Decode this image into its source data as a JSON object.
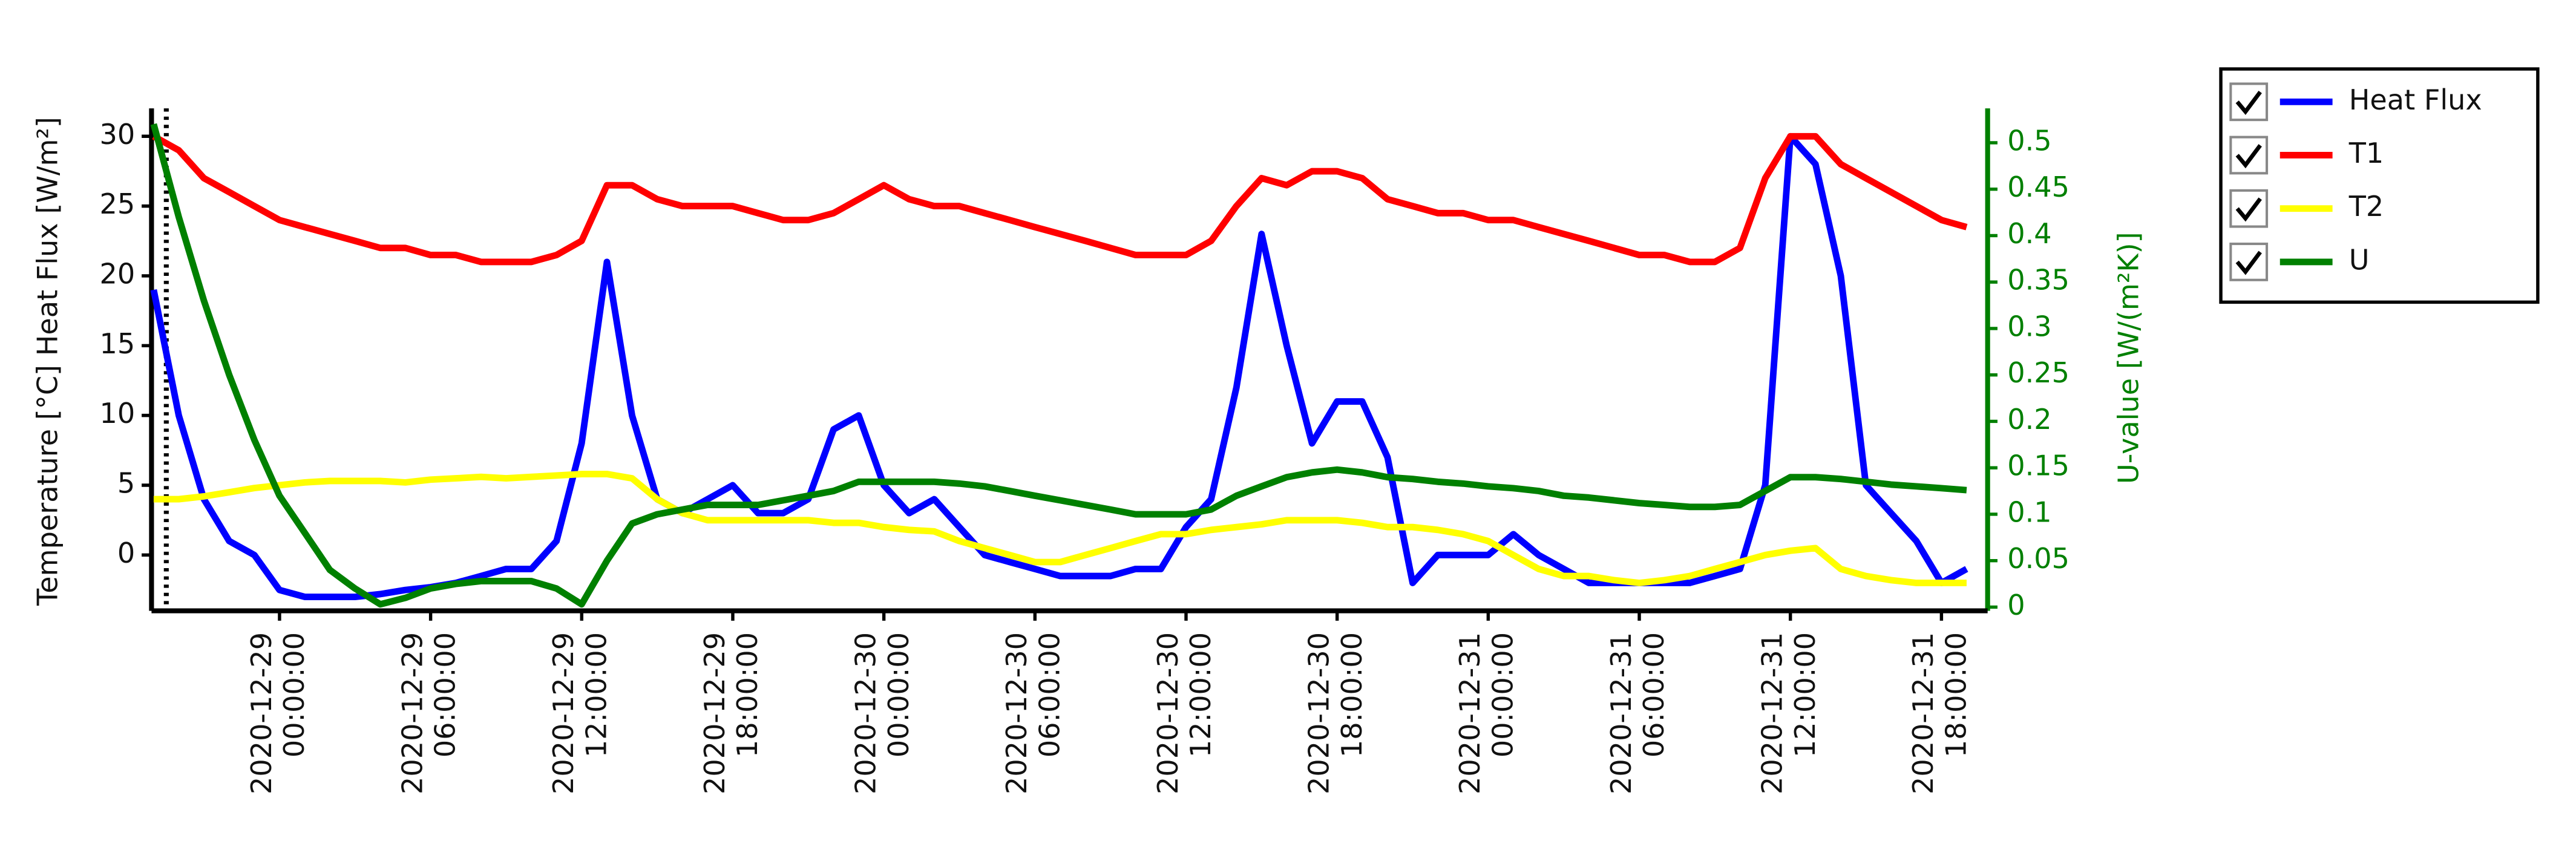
{
  "chart_data": {
    "type": "line",
    "x": [
      "2020-12-28 19:00:00",
      "2020-12-28 20:00:00",
      "2020-12-28 21:00:00",
      "2020-12-28 22:00:00",
      "2020-12-28 23:00:00",
      "2020-12-29 00:00:00",
      "2020-12-29 01:00:00",
      "2020-12-29 02:00:00",
      "2020-12-29 03:00:00",
      "2020-12-29 04:00:00",
      "2020-12-29 05:00:00",
      "2020-12-29 06:00:00",
      "2020-12-29 07:00:00",
      "2020-12-29 08:00:00",
      "2020-12-29 09:00:00",
      "2020-12-29 10:00:00",
      "2020-12-29 11:00:00",
      "2020-12-29 12:00:00",
      "2020-12-29 13:00:00",
      "2020-12-29 14:00:00",
      "2020-12-29 15:00:00",
      "2020-12-29 16:00:00",
      "2020-12-29 17:00:00",
      "2020-12-29 18:00:00",
      "2020-12-29 19:00:00",
      "2020-12-29 20:00:00",
      "2020-12-29 21:00:00",
      "2020-12-29 22:00:00",
      "2020-12-29 23:00:00",
      "2020-12-30 00:00:00",
      "2020-12-30 01:00:00",
      "2020-12-30 02:00:00",
      "2020-12-30 03:00:00",
      "2020-12-30 04:00:00",
      "2020-12-30 05:00:00",
      "2020-12-30 06:00:00",
      "2020-12-30 07:00:00",
      "2020-12-30 08:00:00",
      "2020-12-30 09:00:00",
      "2020-12-30 10:00:00",
      "2020-12-30 11:00:00",
      "2020-12-30 12:00:00",
      "2020-12-30 13:00:00",
      "2020-12-30 14:00:00",
      "2020-12-30 15:00:00",
      "2020-12-30 16:00:00",
      "2020-12-30 17:00:00",
      "2020-12-30 18:00:00",
      "2020-12-30 19:00:00",
      "2020-12-30 20:00:00",
      "2020-12-30 21:00:00",
      "2020-12-30 22:00:00",
      "2020-12-30 23:00:00",
      "2020-12-31 00:00:00",
      "2020-12-31 01:00:00",
      "2020-12-31 02:00:00",
      "2020-12-31 03:00:00",
      "2020-12-31 04:00:00",
      "2020-12-31 05:00:00",
      "2020-12-31 06:00:00",
      "2020-12-31 07:00:00",
      "2020-12-31 08:00:00",
      "2020-12-31 09:00:00",
      "2020-12-31 10:00:00",
      "2020-12-31 11:00:00",
      "2020-12-31 12:00:00",
      "2020-12-31 13:00:00",
      "2020-12-31 14:00:00",
      "2020-12-31 15:00:00",
      "2020-12-31 16:00:00",
      "2020-12-31 17:00:00",
      "2020-12-31 18:00:00",
      "2020-12-31 19:00:00"
    ],
    "series": [
      {
        "name": "Heat Flux",
        "color": "#0000ff",
        "values": [
          19,
          10,
          4,
          1,
          0,
          -2.5,
          -3,
          -3,
          -3,
          -2.8,
          -2.5,
          -2.3,
          -2,
          -1.5,
          -1,
          -1,
          1,
          8,
          21,
          10,
          4,
          3,
          4,
          5,
          3,
          3,
          4,
          9,
          10,
          5,
          3,
          4,
          2,
          0,
          -0.5,
          -1,
          -1.5,
          -1.5,
          -1.5,
          -1,
          -1,
          2,
          4,
          12,
          23,
          15,
          8,
          11,
          11,
          7,
          -2,
          0,
          0,
          0,
          1.5,
          0,
          -1,
          -2,
          -2,
          -2,
          -2,
          -2,
          -1.5,
          -1,
          5,
          30,
          28,
          20,
          5,
          3,
          1,
          -2,
          -1
        ]
      },
      {
        "name": "T1",
        "color": "#ff0000",
        "values": [
          30,
          29,
          27,
          26,
          25,
          24,
          23.5,
          23,
          22.5,
          22,
          22,
          21.5,
          21.5,
          21,
          21,
          21,
          21.5,
          22.5,
          26.5,
          26.5,
          25.5,
          25,
          25,
          25,
          24.5,
          24,
          24,
          24.5,
          25.5,
          26.5,
          25.5,
          25,
          25,
          24.5,
          24,
          23.5,
          23,
          22.5,
          22,
          21.5,
          21.5,
          21.5,
          22.5,
          25,
          27,
          26.5,
          27.5,
          27.5,
          27,
          25.5,
          25,
          24.5,
          24.5,
          24,
          24,
          23.5,
          23,
          22.5,
          22,
          21.5,
          21.5,
          21,
          21,
          22,
          27,
          30,
          30,
          28,
          27,
          26,
          25,
          24,
          23.5
        ]
      },
      {
        "name": "T2",
        "color": "#ffff00",
        "values": [
          4,
          4,
          4.2,
          4.5,
          4.8,
          5,
          5.2,
          5.3,
          5.3,
          5.3,
          5.2,
          5.4,
          5.5,
          5.6,
          5.5,
          5.6,
          5.7,
          5.8,
          5.8,
          5.5,
          4,
          3,
          2.5,
          2.5,
          2.5,
          2.5,
          2.5,
          2.3,
          2.3,
          2,
          1.8,
          1.7,
          1,
          0.5,
          0,
          -0.5,
          -0.5,
          0,
          0.5,
          1,
          1.5,
          1.5,
          1.8,
          2,
          2.2,
          2.5,
          2.5,
          2.5,
          2.3,
          2,
          2,
          1.8,
          1.5,
          1,
          0,
          -1,
          -1.5,
          -1.5,
          -1.8,
          -2,
          -1.8,
          -1.5,
          -1,
          -0.5,
          0,
          0.3,
          0.5,
          -1,
          -1.5,
          -1.8,
          -2,
          -2,
          -2
        ]
      },
      {
        "name": "U",
        "color": "#008000",
        "axis": "y2",
        "values": [
          0.52,
          0.42,
          0.33,
          0.25,
          0.18,
          0.12,
          0.08,
          0.04,
          0.02,
          0.003,
          0.01,
          0.02,
          0.025,
          0.028,
          0.028,
          0.028,
          0.02,
          0.003,
          0.05,
          0.09,
          0.1,
          0.105,
          0.11,
          0.11,
          0.11,
          0.115,
          0.12,
          0.125,
          0.135,
          0.135,
          0.135,
          0.135,
          0.133,
          0.13,
          0.125,
          0.12,
          0.115,
          0.11,
          0.105,
          0.1,
          0.1,
          0.1,
          0.105,
          0.12,
          0.13,
          0.14,
          0.145,
          0.148,
          0.145,
          0.14,
          0.138,
          0.135,
          0.133,
          0.13,
          0.128,
          0.125,
          0.12,
          0.118,
          0.115,
          0.112,
          0.11,
          0.108,
          0.108,
          0.11,
          0.125,
          0.14,
          0.14,
          0.138,
          0.135,
          0.132,
          0.13,
          0.128,
          0.126
        ]
      }
    ],
    "xlim": [
      "2020-12-28 18:55:00",
      "2020-12-31 19:50:00"
    ],
    "xticks": [
      "2020-12-29 00:00:00",
      "2020-12-29 06:00:00",
      "2020-12-29 12:00:00",
      "2020-12-29 18:00:00",
      "2020-12-30 00:00:00",
      "2020-12-30 06:00:00",
      "2020-12-30 12:00:00",
      "2020-12-30 18:00:00",
      "2020-12-31 00:00:00",
      "2020-12-31 06:00:00",
      "2020-12-31 12:00:00",
      "2020-12-31 18:00:00"
    ],
    "ylim": [
      -4,
      32
    ],
    "yticks": [
      0,
      5,
      10,
      15,
      20,
      25,
      30
    ],
    "y2lim": [
      -0.004,
      0.537
    ],
    "y2ticks": [
      0,
      0.05,
      0.1,
      0.15,
      0.2,
      0.25,
      0.3,
      0.35,
      0.4,
      0.45,
      0.5
    ],
    "ylabel": "Temperature [°C] Heat Flux [W/m²]",
    "y2label": "U-value [W/(m²K)]",
    "y2color": "#008000",
    "legend": "outside-right"
  }
}
